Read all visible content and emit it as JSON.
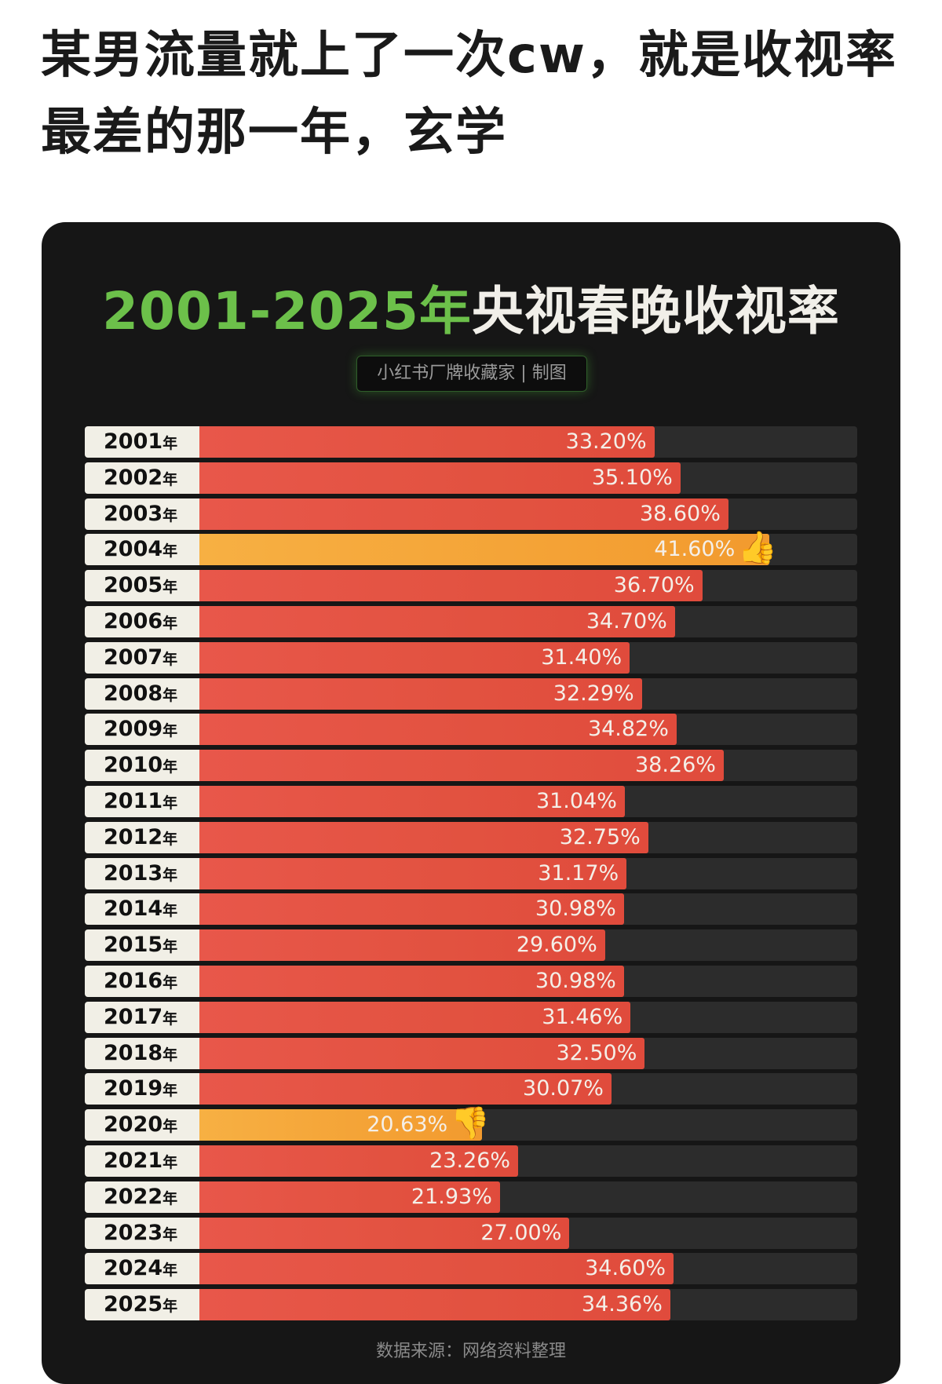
{
  "post": {
    "title": "某男流量就上了一次cw，就是收视率最差的那一年，玄学"
  },
  "chart_data": {
    "type": "bar",
    "orientation": "horizontal",
    "title_part1": "2001-2025年",
    "title_part2": "央视春晚收视率",
    "subtitle": "小红书厂牌收藏家 | 制图",
    "source": "数据来源：网络资料整理",
    "unit_suffix": "年",
    "categories": [
      "2001",
      "2002",
      "2003",
      "2004",
      "2005",
      "2006",
      "2007",
      "2008",
      "2009",
      "2010",
      "2011",
      "2012",
      "2013",
      "2014",
      "2015",
      "2016",
      "2017",
      "2018",
      "2019",
      "2020",
      "2021",
      "2022",
      "2023",
      "2024",
      "2025"
    ],
    "values": [
      33.2,
      35.1,
      38.6,
      41.6,
      36.7,
      34.7,
      31.4,
      32.29,
      34.82,
      38.26,
      31.04,
      32.75,
      31.17,
      30.98,
      29.6,
      30.98,
      31.46,
      32.5,
      30.07,
      20.63,
      23.26,
      21.93,
      27.0,
      34.6,
      34.36
    ],
    "labels": [
      "33.20%",
      "35.10%",
      "38.60%",
      "41.60%",
      "36.70%",
      "34.70%",
      "31.40%",
      "32.29%",
      "34.82%",
      "38.26%",
      "31.04%",
      "32.75%",
      "31.17%",
      "30.98%",
      "29.60%",
      "30.98%",
      "31.46%",
      "32.50%",
      "30.07%",
      "20.63%",
      "23.26%",
      "21.93%",
      "27.00%",
      "34.60%",
      "34.36%"
    ],
    "highlights": {
      "2004": "thumbs-up-icon",
      "2020": "thumbs-down-icon"
    },
    "xlim": [
      0,
      48
    ],
    "colors": {
      "bar": "#e25240",
      "highlight": "#f5a63a",
      "track": "#2c2c2c",
      "background": "#161616",
      "title_green": "#6cc04a"
    }
  }
}
